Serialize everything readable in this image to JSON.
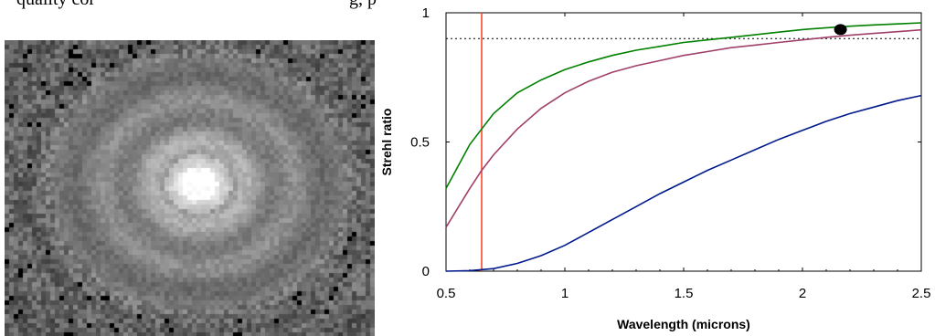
{
  "caption_fragment_left": "quality cor",
  "caption_fragment_right": "g, p",
  "psf_image": {
    "description_icon": "point-spread-function-image"
  },
  "chart_data": {
    "type": "line",
    "title": "",
    "xlabel": "Wavelength (microns)",
    "ylabel": "Strehl ratio",
    "xlim": [
      0.5,
      2.5
    ],
    "ylim": [
      0,
      1
    ],
    "xticks": [
      0.5,
      1,
      1.5,
      2,
      2.5
    ],
    "xtick_labels": [
      "0.5",
      "1",
      "1.5",
      "2",
      "2.5"
    ],
    "yticks": [
      0,
      0.5,
      1
    ],
    "ytick_labels": [
      "0",
      "0.5",
      "1"
    ],
    "grid": false,
    "series": [
      {
        "color": "#008000",
        "x": [
          0.5,
          0.6,
          0.65,
          0.7,
          0.8,
          0.9,
          1.0,
          1.1,
          1.2,
          1.3,
          1.4,
          1.5,
          1.6,
          1.7,
          1.8,
          1.9,
          2.0,
          2.1,
          2.2,
          2.3,
          2.4,
          2.5
        ],
        "y": [
          0.32,
          0.49,
          0.55,
          0.61,
          0.69,
          0.74,
          0.78,
          0.81,
          0.835,
          0.855,
          0.87,
          0.885,
          0.895,
          0.905,
          0.915,
          0.925,
          0.935,
          0.942,
          0.948,
          0.953,
          0.957,
          0.961
        ]
      },
      {
        "color": "#a0406a",
        "x": [
          0.5,
          0.6,
          0.65,
          0.7,
          0.8,
          0.9,
          1.0,
          1.1,
          1.2,
          1.3,
          1.4,
          1.5,
          1.6,
          1.7,
          1.8,
          1.9,
          2.0,
          2.1,
          2.2,
          2.3,
          2.4,
          2.5
        ],
        "y": [
          0.17,
          0.32,
          0.39,
          0.45,
          0.55,
          0.63,
          0.69,
          0.735,
          0.77,
          0.795,
          0.815,
          0.835,
          0.85,
          0.865,
          0.875,
          0.885,
          0.895,
          0.905,
          0.913,
          0.92,
          0.927,
          0.934
        ]
      },
      {
        "color": "#001a8c",
        "x": [
          0.5,
          0.6,
          0.7,
          0.8,
          0.9,
          1.0,
          1.1,
          1.2,
          1.3,
          1.4,
          1.5,
          1.6,
          1.7,
          1.8,
          1.9,
          2.0,
          2.1,
          2.2,
          2.3,
          2.4,
          2.5
        ],
        "y": [
          0.0,
          0.002,
          0.01,
          0.03,
          0.06,
          0.1,
          0.15,
          0.2,
          0.25,
          0.3,
          0.345,
          0.39,
          0.43,
          0.47,
          0.51,
          0.545,
          0.58,
          0.61,
          0.635,
          0.66,
          0.68
        ]
      }
    ],
    "reference_lines": [
      {
        "orientation": "horizontal",
        "value": 0.9,
        "style": "dotted",
        "color": "#000000"
      },
      {
        "orientation": "vertical",
        "value": 0.65,
        "style": "solid",
        "color": "#ff3b1f"
      }
    ],
    "markers": [
      {
        "x": 2.16,
        "y": 0.935,
        "color": "#000000"
      }
    ]
  }
}
